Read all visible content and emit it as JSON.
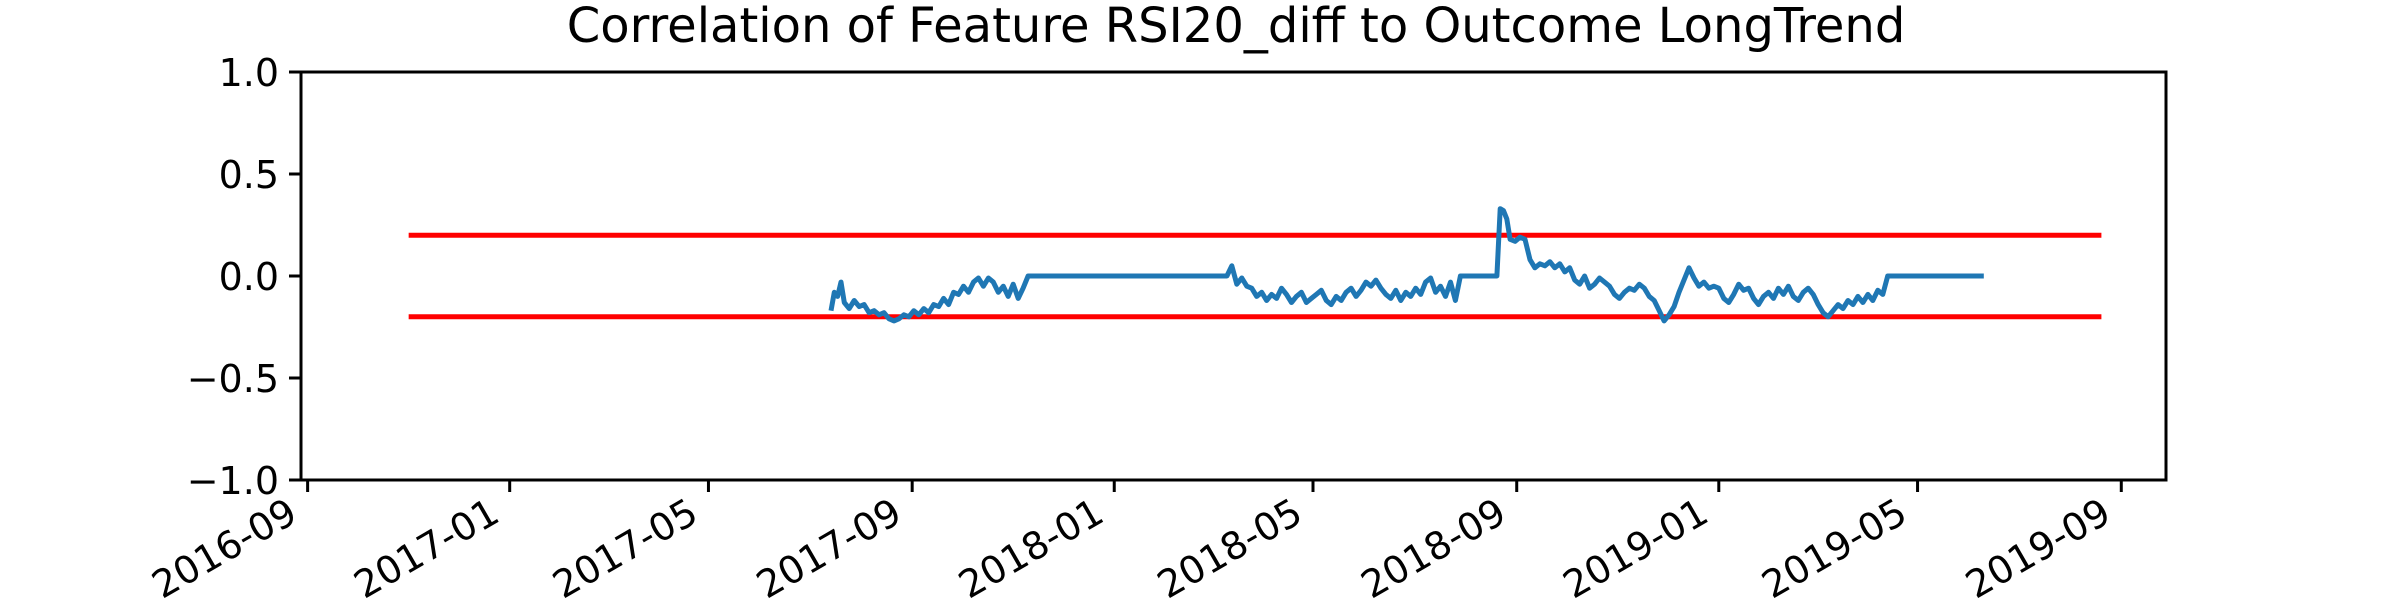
{
  "chart_data": {
    "type": "line",
    "title": "Correlation of Feature RSI20_diff to Outcome LongTrend",
    "xlabel": "",
    "ylabel": "",
    "ylim": [
      -1.0,
      1.0
    ],
    "xlim": [
      "2016-08-28",
      "2019-09-28"
    ],
    "x_ticks": [
      "2016-09",
      "2017-01",
      "2017-05",
      "2017-09",
      "2018-01",
      "2018-05",
      "2018-09",
      "2019-01",
      "2019-05",
      "2019-09"
    ],
    "y_ticks": [
      "1.0",
      "0.5",
      "0.0",
      "−0.5",
      "−1.0"
    ],
    "y_tick_values": [
      1.0,
      0.5,
      0.0,
      -0.5,
      -1.0
    ],
    "grid": false,
    "series": [
      {
        "color": "#1f77b4",
        "points": [
          [
            "2017-07-14",
            -0.17
          ],
          [
            "2017-07-16",
            -0.08
          ],
          [
            "2017-07-18",
            -0.1
          ],
          [
            "2017-07-20",
            -0.03
          ],
          [
            "2017-07-22",
            -0.13
          ],
          [
            "2017-07-25",
            -0.16
          ],
          [
            "2017-07-28",
            -0.12
          ],
          [
            "2017-07-31",
            -0.15
          ],
          [
            "2017-08-03",
            -0.14
          ],
          [
            "2017-08-06",
            -0.18
          ],
          [
            "2017-08-09",
            -0.17
          ],
          [
            "2017-08-12",
            -0.19
          ],
          [
            "2017-08-15",
            -0.18
          ],
          [
            "2017-08-18",
            -0.21
          ],
          [
            "2017-08-21",
            -0.22
          ],
          [
            "2017-08-24",
            -0.21
          ],
          [
            "2017-08-27",
            -0.19
          ],
          [
            "2017-08-30",
            -0.2
          ],
          [
            "2017-09-02",
            -0.17
          ],
          [
            "2017-09-05",
            -0.19
          ],
          [
            "2017-09-08",
            -0.16
          ],
          [
            "2017-09-11",
            -0.18
          ],
          [
            "2017-09-14",
            -0.14
          ],
          [
            "2017-09-17",
            -0.15
          ],
          [
            "2017-09-20",
            -0.11
          ],
          [
            "2017-09-23",
            -0.14
          ],
          [
            "2017-09-26",
            -0.08
          ],
          [
            "2017-09-29",
            -0.09
          ],
          [
            "2017-10-02",
            -0.05
          ],
          [
            "2017-10-05",
            -0.08
          ],
          [
            "2017-10-08",
            -0.03
          ],
          [
            "2017-10-11",
            -0.01
          ],
          [
            "2017-10-14",
            -0.05
          ],
          [
            "2017-10-17",
            -0.01
          ],
          [
            "2017-10-20",
            -0.03
          ],
          [
            "2017-10-23",
            -0.08
          ],
          [
            "2017-10-26",
            -0.05
          ],
          [
            "2017-10-29",
            -0.1
          ],
          [
            "2017-11-01",
            -0.04
          ],
          [
            "2017-11-04",
            -0.11
          ],
          [
            "2017-11-07",
            -0.06
          ],
          [
            "2017-11-10",
            0.0
          ],
          [
            "2018-03-10",
            0.0
          ],
          [
            "2018-03-13",
            0.05
          ],
          [
            "2018-03-16",
            -0.04
          ],
          [
            "2018-03-19",
            -0.01
          ],
          [
            "2018-03-22",
            -0.05
          ],
          [
            "2018-03-25",
            -0.06
          ],
          [
            "2018-03-28",
            -0.1
          ],
          [
            "2018-03-31",
            -0.08
          ],
          [
            "2018-04-03",
            -0.12
          ],
          [
            "2018-04-06",
            -0.09
          ],
          [
            "2018-04-09",
            -0.11
          ],
          [
            "2018-04-12",
            -0.06
          ],
          [
            "2018-04-15",
            -0.09
          ],
          [
            "2018-04-18",
            -0.13
          ],
          [
            "2018-04-21",
            -0.1
          ],
          [
            "2018-04-24",
            -0.08
          ],
          [
            "2018-04-27",
            -0.13
          ],
          [
            "2018-04-30",
            -0.11
          ],
          [
            "2018-05-03",
            -0.09
          ],
          [
            "2018-05-06",
            -0.07
          ],
          [
            "2018-05-09",
            -0.12
          ],
          [
            "2018-05-12",
            -0.14
          ],
          [
            "2018-05-15",
            -0.1
          ],
          [
            "2018-05-18",
            -0.12
          ],
          [
            "2018-05-21",
            -0.08
          ],
          [
            "2018-05-24",
            -0.06
          ],
          [
            "2018-05-27",
            -0.1
          ],
          [
            "2018-05-30",
            -0.07
          ],
          [
            "2018-06-02",
            -0.03
          ],
          [
            "2018-06-05",
            -0.05
          ],
          [
            "2018-06-08",
            -0.02
          ],
          [
            "2018-06-11",
            -0.06
          ],
          [
            "2018-06-14",
            -0.09
          ],
          [
            "2018-06-17",
            -0.11
          ],
          [
            "2018-06-20",
            -0.07
          ],
          [
            "2018-06-23",
            -0.12
          ],
          [
            "2018-06-26",
            -0.08
          ],
          [
            "2018-06-29",
            -0.1
          ],
          [
            "2018-07-02",
            -0.06
          ],
          [
            "2018-07-05",
            -0.09
          ],
          [
            "2018-07-08",
            -0.03
          ],
          [
            "2018-07-11",
            -0.01
          ],
          [
            "2018-07-14",
            -0.08
          ],
          [
            "2018-07-17",
            -0.05
          ],
          [
            "2018-07-20",
            -0.1
          ],
          [
            "2018-07-23",
            -0.03
          ],
          [
            "2018-07-26",
            -0.12
          ],
          [
            "2018-07-29",
            0.0
          ],
          [
            "2018-08-20",
            0.0
          ],
          [
            "2018-08-22",
            0.33
          ],
          [
            "2018-08-24",
            0.32
          ],
          [
            "2018-08-26",
            0.28
          ],
          [
            "2018-08-28",
            0.18
          ],
          [
            "2018-08-31",
            0.17
          ],
          [
            "2018-09-03",
            0.19
          ],
          [
            "2018-09-06",
            0.18
          ],
          [
            "2018-09-09",
            0.08
          ],
          [
            "2018-09-12",
            0.04
          ],
          [
            "2018-09-15",
            0.06
          ],
          [
            "2018-09-18",
            0.05
          ],
          [
            "2018-09-21",
            0.07
          ],
          [
            "2018-09-24",
            0.04
          ],
          [
            "2018-09-27",
            0.06
          ],
          [
            "2018-09-30",
            0.02
          ],
          [
            "2018-10-03",
            0.04
          ],
          [
            "2018-10-06",
            -0.02
          ],
          [
            "2018-10-09",
            -0.04
          ],
          [
            "2018-10-12",
            0.0
          ],
          [
            "2018-10-15",
            -0.06
          ],
          [
            "2018-10-18",
            -0.04
          ],
          [
            "2018-10-21",
            -0.01
          ],
          [
            "2018-10-24",
            -0.03
          ],
          [
            "2018-10-27",
            -0.05
          ],
          [
            "2018-10-30",
            -0.09
          ],
          [
            "2018-11-02",
            -0.11
          ],
          [
            "2018-11-05",
            -0.08
          ],
          [
            "2018-11-08",
            -0.06
          ],
          [
            "2018-11-11",
            -0.07
          ],
          [
            "2018-11-14",
            -0.04
          ],
          [
            "2018-11-17",
            -0.06
          ],
          [
            "2018-11-20",
            -0.1
          ],
          [
            "2018-11-23",
            -0.12
          ],
          [
            "2018-11-26",
            -0.17
          ],
          [
            "2018-11-29",
            -0.22
          ],
          [
            "2018-12-02",
            -0.19
          ],
          [
            "2018-12-05",
            -0.15
          ],
          [
            "2018-12-08",
            -0.08
          ],
          [
            "2018-12-11",
            -0.02
          ],
          [
            "2018-12-14",
            0.04
          ],
          [
            "2018-12-17",
            -0.01
          ],
          [
            "2018-12-20",
            -0.05
          ],
          [
            "2018-12-23",
            -0.03
          ],
          [
            "2018-12-26",
            -0.06
          ],
          [
            "2018-12-29",
            -0.05
          ],
          [
            "2019-01-01",
            -0.06
          ],
          [
            "2019-01-04",
            -0.11
          ],
          [
            "2019-01-07",
            -0.13
          ],
          [
            "2019-01-10",
            -0.09
          ],
          [
            "2019-01-13",
            -0.04
          ],
          [
            "2019-01-16",
            -0.07
          ],
          [
            "2019-01-19",
            -0.06
          ],
          [
            "2019-01-22",
            -0.11
          ],
          [
            "2019-01-25",
            -0.14
          ],
          [
            "2019-01-28",
            -0.1
          ],
          [
            "2019-01-31",
            -0.08
          ],
          [
            "2019-02-03",
            -0.11
          ],
          [
            "2019-02-06",
            -0.06
          ],
          [
            "2019-02-09",
            -0.09
          ],
          [
            "2019-02-12",
            -0.05
          ],
          [
            "2019-02-15",
            -0.1
          ],
          [
            "2019-02-18",
            -0.12
          ],
          [
            "2019-02-21",
            -0.08
          ],
          [
            "2019-02-24",
            -0.06
          ],
          [
            "2019-02-27",
            -0.09
          ],
          [
            "2019-03-02",
            -0.14
          ],
          [
            "2019-03-05",
            -0.18
          ],
          [
            "2019-03-08",
            -0.2
          ],
          [
            "2019-03-11",
            -0.17
          ],
          [
            "2019-03-14",
            -0.14
          ],
          [
            "2019-03-17",
            -0.16
          ],
          [
            "2019-03-20",
            -0.12
          ],
          [
            "2019-03-23",
            -0.14
          ],
          [
            "2019-03-26",
            -0.1
          ],
          [
            "2019-03-29",
            -0.13
          ],
          [
            "2019-04-01",
            -0.09
          ],
          [
            "2019-04-04",
            -0.12
          ],
          [
            "2019-04-07",
            -0.07
          ],
          [
            "2019-04-10",
            -0.09
          ],
          [
            "2019-04-13",
            0.0
          ],
          [
            "2019-06-10",
            0.0
          ]
        ]
      }
    ],
    "reference_lines": [
      {
        "y": 0.2,
        "x_from": "2016-11-01",
        "x_to": "2019-08-20",
        "color": "#ff0000"
      },
      {
        "y": -0.2,
        "x_from": "2016-11-01",
        "x_to": "2019-08-20",
        "color": "#ff0000"
      }
    ]
  }
}
